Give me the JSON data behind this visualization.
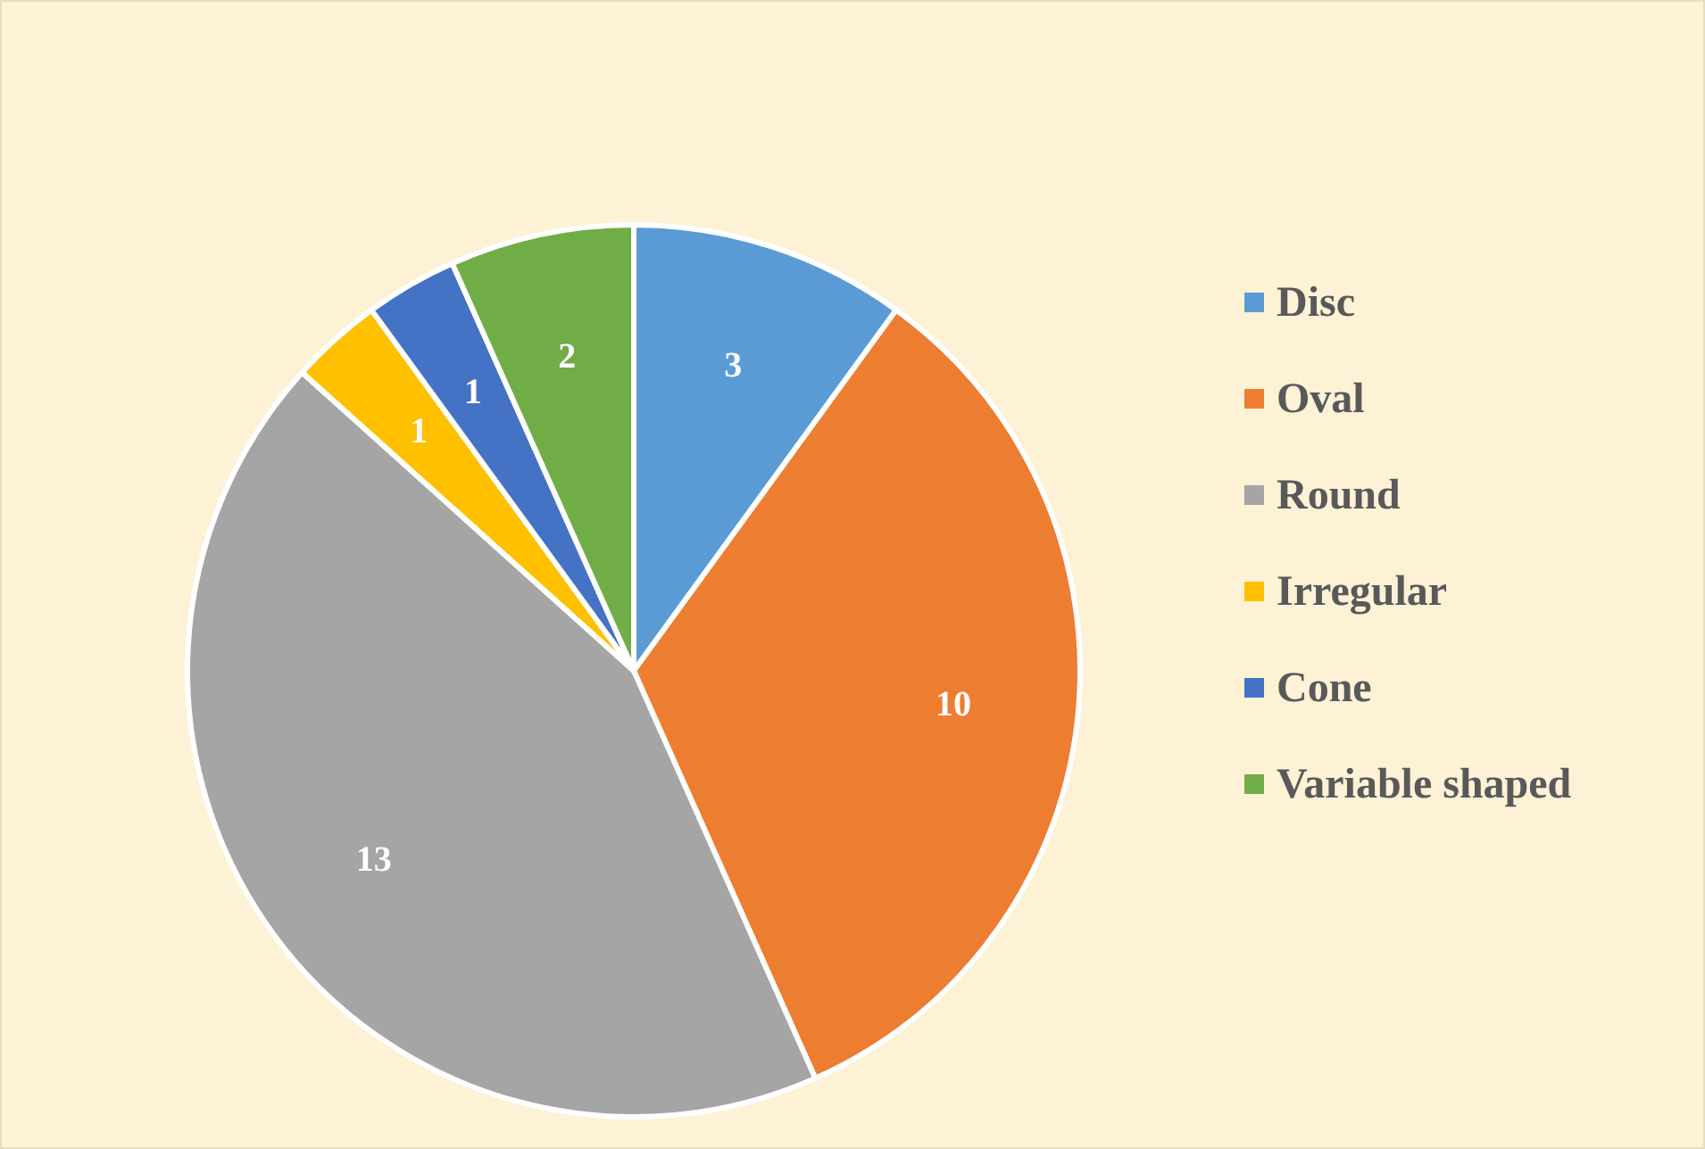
{
  "chart_data": {
    "type": "pie",
    "categories": [
      "Disc",
      "Oval",
      "Round",
      "Irregular",
      "Cone",
      "Variable shaped"
    ],
    "values": [
      3,
      10,
      13,
      1,
      1,
      2
    ],
    "colors": [
      "#5b9bd5",
      "#ed7d31",
      "#a5a5a5",
      "#ffc000",
      "#4472c4",
      "#70ad47"
    ],
    "data_labels": true,
    "legend": "right"
  }
}
